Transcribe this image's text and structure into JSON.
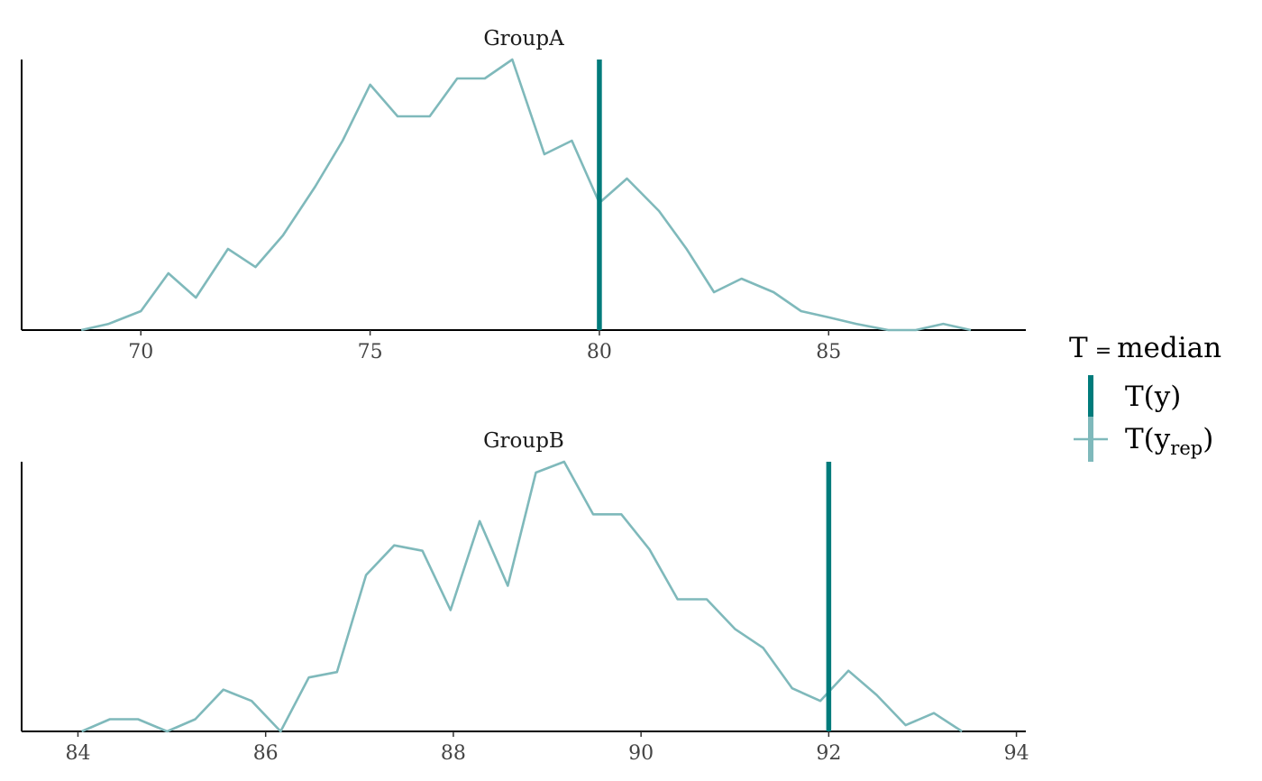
{
  "chart_data": [
    {
      "type": "line",
      "facet_title": "GroupA",
      "xlim": [
        67.4,
        89.3
      ],
      "ylim": [
        0,
        1
      ],
      "x_ticks": [
        70,
        75,
        80,
        85
      ],
      "x_tick_labels": [
        "70",
        "75",
        "80",
        "85"
      ],
      "observed": {
        "value": 80.0
      },
      "series": [
        {
          "x": [
            68.7,
            69.3,
            70.0,
            70.6,
            71.2,
            71.9,
            72.5,
            73.1,
            73.8,
            74.4,
            75.0,
            75.6,
            76.3,
            76.9,
            77.5,
            78.1,
            78.8,
            79.4,
            80.0,
            80.6,
            81.3,
            81.9,
            82.5,
            83.1,
            83.8,
            84.4,
            85.0,
            85.6,
            86.3,
            86.9,
            87.5,
            88.1
          ],
          "values": [
            0.0,
            0.023,
            0.07,
            0.21,
            0.12,
            0.3,
            0.233,
            0.35,
            0.53,
            0.7,
            0.907,
            0.79,
            0.79,
            0.93,
            0.93,
            1.0,
            0.65,
            0.7,
            0.47,
            0.56,
            0.44,
            0.3,
            0.14,
            0.19,
            0.14,
            0.07,
            0.047,
            0.023,
            0.0,
            0.0,
            0.023,
            0.0
          ]
        }
      ]
    },
    {
      "type": "line",
      "facet_title": "GroupB",
      "xlim": [
        83.4,
        94.1
      ],
      "ylim": [
        0,
        1
      ],
      "x_ticks": [
        84,
        86,
        88,
        90,
        92,
        94
      ],
      "x_tick_labels": [
        "84",
        "86",
        "88",
        "90",
        "92",
        "94"
      ],
      "observed": {
        "value": 92.0
      },
      "series": [
        {
          "x": [
            84.04,
            84.34,
            84.64,
            84.95,
            85.25,
            85.55,
            85.85,
            86.16,
            86.46,
            86.76,
            87.07,
            87.37,
            87.67,
            87.97,
            88.28,
            88.58,
            88.88,
            89.18,
            89.49,
            89.79,
            90.09,
            90.39,
            90.7,
            91.0,
            91.3,
            91.61,
            91.91,
            92.21,
            92.51,
            92.82,
            93.12,
            93.42
          ],
          "values": [
            0.0,
            0.045,
            0.045,
            0.0,
            0.045,
            0.155,
            0.113,
            0.0,
            0.2,
            0.22,
            0.58,
            0.69,
            0.67,
            0.45,
            0.78,
            0.54,
            0.96,
            1.0,
            0.805,
            0.805,
            0.675,
            0.49,
            0.49,
            0.38,
            0.31,
            0.16,
            0.113,
            0.225,
            0.135,
            0.023,
            0.068,
            0.0
          ]
        }
      ]
    }
  ],
  "legend": {
    "title_left": "T",
    "title_eq": "=",
    "title_right": "median",
    "observed_label": "T(y)",
    "replicated_label_main": "T(y",
    "replicated_label_sub": "rep",
    "replicated_label_close": ")"
  },
  "colors": {
    "observed": "#007b7b",
    "replicated": "#7fb9bb",
    "axis": "#000000"
  }
}
